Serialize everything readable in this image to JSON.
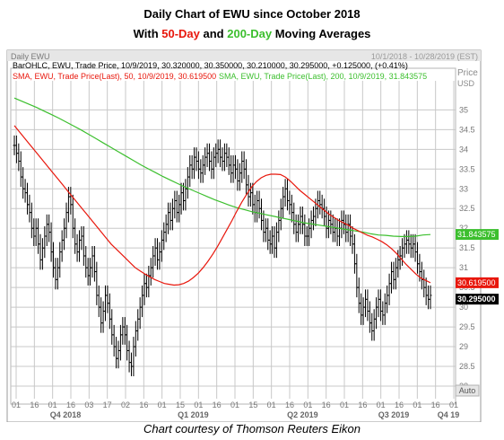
{
  "title": {
    "line1": "Daily Chart of EWU since October 2018",
    "line2_pre": "With ",
    "line2_sma50": "50-Day",
    "line2_mid": " and ",
    "line2_sma200": "200-Day",
    "line2_post": " Moving Averages"
  },
  "header": {
    "panel_label": "Daily EWU",
    "date_range": "10/1/2018 - 10/28/2019 (EST)",
    "price_label": "Price",
    "currency_label": "USD",
    "legend_bar": "BarOHLC, EWU, Trade Price, 10/9/2019, 30.320000, 30.350000, 30.210000, 30.295000, +0.125000, (+0.41%)",
    "legend_sma50": "SMA, EWU, Trade Price(Last),  50,  10/9/2019, 30.619500",
    "legend_sma200": "SMA, EWU, Trade Price(Last),  200,  10/9/2019, 31.843575",
    "auto_label": "Auto"
  },
  "credit": "Chart courtesy of Thomson Reuters Eikon",
  "colors": {
    "bars": "#000000",
    "sma50": "#e8170c",
    "sma200": "#3cbf2e",
    "grid": "#c8c8c8",
    "tag_sma200_bg": "#3cbf2e",
    "tag_sma50_bg": "#e8170c",
    "tag_last_bg": "#000000"
  },
  "chart_data": {
    "type": "line",
    "ylim": [
      28.0,
      35.6
    ],
    "y_ticks": [
      "35",
      "34.5",
      "34",
      "33.5",
      "33",
      "32.5",
      "32",
      "31.5",
      "31",
      "30.5",
      "30",
      "29.5",
      "29",
      "28.5",
      "28"
    ],
    "x_tick_labels": [
      "01",
      "16",
      "01",
      "16",
      "03",
      "17",
      "02",
      "16",
      "01",
      "15",
      "01",
      "16",
      "01",
      "15",
      "01",
      "16",
      "01",
      "16",
      "01",
      "16",
      "01",
      "16",
      "01",
      "16",
      "01"
    ],
    "quarter_labels": [
      "Q4 2018",
      "Q1 2019",
      "Q2 2019",
      "Q3 2019",
      "Q4 19"
    ],
    "series": [
      {
        "name": "BarOHLC, EWU, Trade Price",
        "style": "ohlc_bars",
        "closes": [
          34.1,
          33.9,
          33.7,
          33.3,
          33.0,
          32.9,
          32.6,
          32.4,
          32.0,
          31.8,
          32.0,
          31.6,
          31.2,
          31.5,
          31.8,
          32.1,
          31.9,
          31.4,
          31.0,
          30.7,
          31.0,
          31.4,
          31.7,
          32.0,
          32.4,
          32.8,
          32.6,
          32.0,
          31.6,
          31.4,
          31.7,
          31.8,
          31.3,
          31.0,
          30.8,
          31.0,
          31.3,
          30.9,
          30.3,
          30.0,
          29.6,
          29.9,
          30.3,
          30.1,
          29.7,
          29.3,
          29.0,
          28.7,
          28.9,
          29.3,
          29.5,
          29.3,
          28.9,
          28.6,
          28.5,
          29.0,
          29.4,
          29.7,
          30.0,
          30.3,
          30.6,
          30.5,
          30.8,
          31.0,
          31.3,
          31.5,
          31.2,
          31.4,
          31.7,
          31.9,
          32.1,
          32.4,
          32.2,
          32.5,
          32.7,
          32.4,
          32.6,
          32.9,
          32.7,
          33.0,
          33.3,
          33.6,
          33.5,
          33.8,
          33.7,
          33.5,
          33.4,
          33.6,
          33.8,
          33.9,
          33.7,
          33.5,
          33.8,
          33.9,
          34.0,
          33.8,
          33.7,
          33.9,
          33.8,
          33.6,
          33.4,
          33.6,
          33.5,
          33.2,
          33.4,
          33.7,
          33.5,
          33.1,
          32.8,
          32.9,
          32.6,
          32.4,
          32.7,
          32.5,
          32.2,
          31.9,
          32.0,
          31.7,
          31.6,
          31.8,
          31.5,
          31.9,
          32.2,
          32.5,
          32.8,
          33.0,
          32.7,
          32.6,
          32.4,
          32.1,
          31.9,
          32.1,
          32.3,
          32.1,
          31.8,
          31.8,
          32.0,
          32.2,
          32.3,
          32.5,
          32.7,
          32.6,
          32.5,
          32.3,
          32.0,
          32.2,
          32.1,
          31.9,
          32.0,
          31.8,
          32.0,
          32.2,
          32.1,
          31.9,
          32.1,
          31.8,
          31.6,
          31.1,
          30.5,
          30.1,
          29.8,
          30.0,
          30.2,
          29.9,
          29.6,
          29.4,
          29.7,
          30.0,
          30.2,
          29.9,
          29.8,
          30.1,
          30.3,
          30.6,
          30.9,
          30.7,
          31.0,
          31.2,
          31.3,
          31.5,
          31.6,
          31.7,
          31.6,
          31.5,
          31.6,
          31.4,
          31.1,
          30.9,
          30.7,
          30.5,
          30.3,
          30.2,
          30.3
        ],
        "last": {
          "date": "10/9/2019",
          "open": 30.32,
          "high": 30.35,
          "low": 30.21,
          "close": 30.295
        }
      },
      {
        "name": "SMA 50",
        "values": [
          34.6,
          34.45,
          34.3,
          34.15,
          34.0,
          33.85,
          33.7,
          33.55,
          33.4,
          33.25,
          33.1,
          32.95,
          32.8,
          32.65,
          32.5,
          32.35,
          32.2,
          32.05,
          31.9,
          31.75,
          31.6,
          31.48,
          31.36,
          31.24,
          31.12,
          31.0,
          30.92,
          30.84,
          30.77,
          30.7,
          30.65,
          30.6,
          30.58,
          30.56,
          30.57,
          30.6,
          30.66,
          30.75,
          30.86,
          31.0,
          31.16,
          31.34,
          31.54,
          31.76,
          31.98,
          32.2,
          32.44,
          32.66,
          32.86,
          33.04,
          33.18,
          33.28,
          33.34,
          33.37,
          33.37,
          33.36,
          33.3,
          33.2,
          33.08,
          32.96,
          32.86,
          32.76,
          32.66,
          32.56,
          32.46,
          32.36,
          32.28,
          32.2,
          32.14,
          32.08,
          32.0,
          31.94,
          31.88,
          31.82,
          31.78,
          31.72,
          31.66,
          31.58,
          31.48,
          31.36,
          31.22,
          31.08,
          30.96,
          30.84,
          30.74,
          30.68,
          30.62
        ]
      },
      {
        "name": "SMA 200",
        "values": [
          35.3,
          35.22,
          35.14,
          35.06,
          34.97,
          34.88,
          34.79,
          34.69,
          34.59,
          34.49,
          34.38,
          34.27,
          34.16,
          34.05,
          33.94,
          33.83,
          33.72,
          33.61,
          33.51,
          33.41,
          33.31,
          33.22,
          33.13,
          33.04,
          32.96,
          32.88,
          32.8,
          32.72,
          32.65,
          32.58,
          32.52,
          32.47,
          32.42,
          32.38,
          32.34,
          32.3,
          32.26,
          32.22,
          32.18,
          32.14,
          32.11,
          32.08,
          32.05,
          32.02,
          31.99,
          31.96,
          31.93,
          31.9,
          31.86,
          31.83,
          31.82,
          31.8,
          31.79,
          31.79,
          31.8,
          31.83,
          31.84
        ]
      }
    ],
    "value_tags": [
      {
        "name": "SMA 200",
        "value": 31.843575,
        "text": "31.843575"
      },
      {
        "name": "SMA 50",
        "value": 30.6195,
        "text": "30.619500"
      },
      {
        "name": "Last",
        "value": 30.295,
        "text": "30.295000"
      }
    ]
  }
}
